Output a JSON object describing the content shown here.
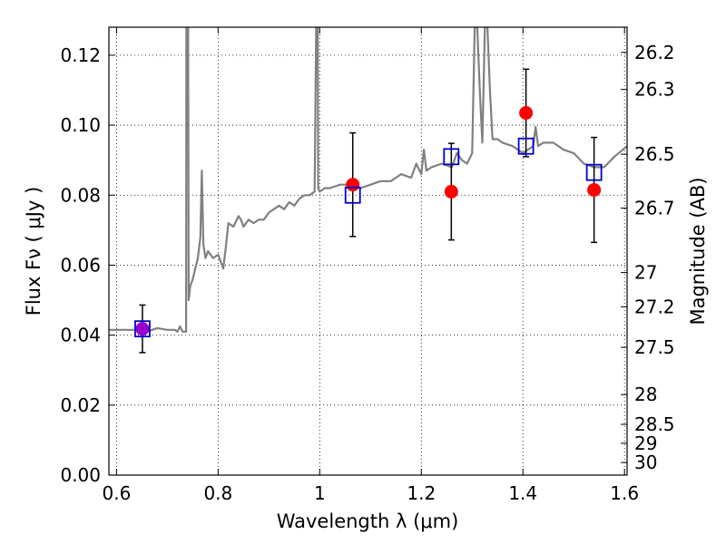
{
  "chart_data": {
    "type": "scatter",
    "xlabel": "Wavelength  λ (μm)",
    "ylabel": "Flux  Fν  ( μJy )",
    "y2label": "Magnitude (AB)",
    "xlim": [
      0.585,
      1.605
    ],
    "ylim": [
      0.0,
      0.128
    ],
    "x_ticks": [
      0.6,
      0.8,
      1.0,
      1.2,
      1.4,
      1.6
    ],
    "x_tick_labels": [
      "0.6",
      "0.8",
      "1",
      "1.2",
      "1.4",
      "1.6"
    ],
    "y_ticks": [
      0.0,
      0.02,
      0.04,
      0.06,
      0.08,
      0.1,
      0.12
    ],
    "y_tick_labels": [
      "0.00",
      "0.02",
      "0.04",
      "0.06",
      "0.08",
      "0.10",
      "0.12"
    ],
    "y2_ticks": [
      {
        "label": "26.2",
        "flux": 0.1208
      },
      {
        "label": "26.3",
        "flux": 0.1102
      },
      {
        "label": "26.5",
        "flux": 0.0917
      },
      {
        "label": "26.7",
        "flux": 0.0763
      },
      {
        "label": "27",
        "flux": 0.0579
      },
      {
        "label": "27.2",
        "flux": 0.0481
      },
      {
        "label": "27.5",
        "flux": 0.0365
      },
      {
        "label": "28",
        "flux": 0.023
      },
      {
        "label": "28.5",
        "flux": 0.0145
      },
      {
        "label": "29",
        "flux": 0.0091
      },
      {
        "label": "30",
        "flux": 0.0036
      }
    ],
    "grid": true,
    "colors": {
      "model_line": "#808080",
      "measured": "#ff0000",
      "model_bands": "#0000cc",
      "overlap": "#9900cc",
      "errorbar": "#000000"
    },
    "series": [
      {
        "kind": "line",
        "x": [
          0.585,
          0.6,
          0.62,
          0.64,
          0.66,
          0.68,
          0.7,
          0.715,
          0.72,
          0.725,
          0.73,
          0.733,
          0.737,
          0.7375,
          0.738,
          0.739,
          0.741,
          0.742,
          0.745,
          0.75,
          0.755,
          0.76,
          0.765,
          0.768,
          0.771,
          0.775,
          0.78,
          0.785,
          0.79,
          0.8,
          0.81,
          0.815,
          0.82,
          0.83,
          0.84,
          0.845,
          0.85,
          0.86,
          0.87,
          0.88,
          0.89,
          0.9,
          0.91,
          0.92,
          0.93,
          0.94,
          0.95,
          0.96,
          0.97,
          0.98,
          0.99,
          0.993,
          0.995,
          0.996,
          0.997,
          1.0,
          1.01,
          1.02,
          1.04,
          1.06,
          1.08,
          1.1,
          1.12,
          1.14,
          1.16,
          1.18,
          1.19,
          1.2,
          1.205,
          1.21,
          1.22,
          1.24,
          1.26,
          1.27,
          1.28,
          1.29,
          1.3,
          1.305,
          1.31,
          1.315,
          1.32,
          1.325,
          1.33,
          1.335,
          1.34,
          1.35,
          1.36,
          1.38,
          1.4,
          1.41,
          1.42,
          1.425,
          1.43,
          1.44,
          1.46,
          1.48,
          1.5,
          1.52,
          1.54,
          1.56,
          1.58,
          1.605
        ],
        "y": [
          0.0415,
          0.0415,
          0.0415,
          0.0415,
          0.041,
          0.042,
          0.0415,
          0.0415,
          0.041,
          0.0425,
          0.041,
          0.041,
          0.041,
          0.128,
          0.128,
          0.128,
          0.128,
          0.05,
          0.054,
          0.056,
          0.059,
          0.062,
          0.068,
          0.087,
          0.066,
          0.062,
          0.064,
          0.063,
          0.062,
          0.063,
          0.059,
          0.065,
          0.072,
          0.071,
          0.074,
          0.073,
          0.071,
          0.073,
          0.072,
          0.073,
          0.073,
          0.075,
          0.076,
          0.077,
          0.076,
          0.078,
          0.077,
          0.079,
          0.08,
          0.08,
          0.081,
          0.128,
          0.128,
          0.128,
          0.082,
          0.081,
          0.082,
          0.082,
          0.083,
          0.083,
          0.082,
          0.083,
          0.084,
          0.084,
          0.086,
          0.085,
          0.089,
          0.086,
          0.093,
          0.087,
          0.088,
          0.089,
          0.088,
          0.092,
          0.09,
          0.089,
          0.092,
          0.128,
          0.128,
          0.11,
          0.095,
          0.128,
          0.128,
          0.11,
          0.096,
          0.096,
          0.095,
          0.094,
          0.092,
          0.093,
          0.094,
          0.0995,
          0.094,
          0.095,
          0.095,
          0.093,
          0.092,
          0.089,
          0.088,
          0.088,
          0.091,
          0.094
        ]
      },
      {
        "kind": "errorbar",
        "x": [
          0.651,
          1.065,
          1.259,
          1.406,
          1.54
        ],
        "y": [
          0.0418,
          0.083,
          0.081,
          0.1035,
          0.0815
        ],
        "yerr_low": [
          0.0068,
          0.0148,
          0.0138,
          0.0125,
          0.015
        ],
        "yerr_high": [
          0.0068,
          0.0148,
          0.0138,
          0.0125,
          0.015
        ]
      },
      {
        "kind": "scatter",
        "marker": "circle",
        "x": [
          0.651,
          1.065,
          1.259,
          1.406,
          1.54
        ],
        "y": [
          0.0418,
          0.083,
          0.081,
          0.1035,
          0.0815
        ]
      },
      {
        "kind": "scatter",
        "marker": "open-square",
        "x": [
          0.651,
          1.065,
          1.259,
          1.406,
          1.54
        ],
        "y": [
          0.0418,
          0.08,
          0.091,
          0.094,
          0.0865
        ]
      }
    ]
  }
}
